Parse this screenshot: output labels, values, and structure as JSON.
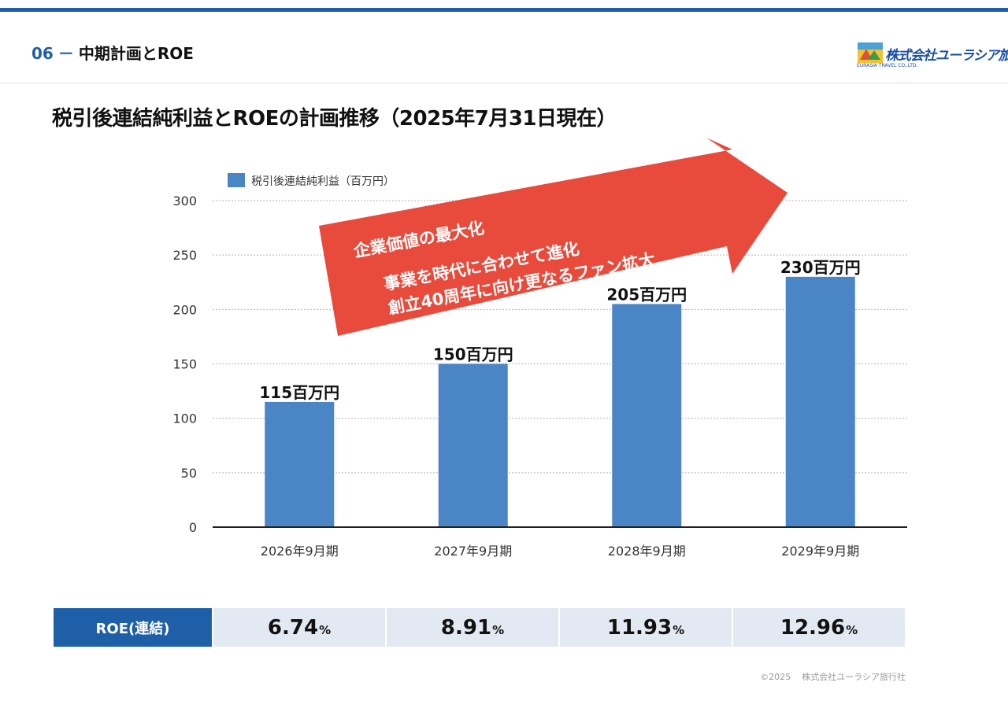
{
  "header": {
    "section_number": "06",
    "section_dash": "－",
    "section_title": "中期計画とROE",
    "logo_text": "株式会社ユーラシア旅行社",
    "logo_sub": "EURASIA TRAVEL CO.,LTD."
  },
  "main_title": "税引後連結純利益とROEの計画推移（2025年7月31日現在）",
  "arrow": {
    "line1": "企業価値の最大化",
    "line2": "事業を時代に合わせて進化",
    "line3": "創立40周年に向け更なるファン拡大"
  },
  "chart_data": {
    "type": "bar",
    "title": "",
    "categories": [
      "2026年9月期",
      "2027年9月期",
      "2028年9月期",
      "2029年9月期"
    ],
    "series": [
      {
        "name": "税引後連結純利益（百万円）",
        "values": [
          115,
          150,
          205,
          230
        ]
      }
    ],
    "data_labels": [
      "115百万円",
      "150百万円",
      "205百万円",
      "230百万円"
    ],
    "ylim": [
      0,
      300
    ],
    "yticks": [
      0,
      50,
      100,
      150,
      200,
      250,
      300
    ],
    "xlabel": "",
    "ylabel": "",
    "grid": true,
    "legend": "top-left",
    "color": "#4a86c5"
  },
  "roe": {
    "label": "ROE(連結)",
    "unit": "%",
    "values": [
      "6.74",
      "8.91",
      "11.93",
      "12.96"
    ]
  },
  "footer": {
    "copyright": "©2025",
    "company": "株式会社ユーラシア旅行社"
  }
}
